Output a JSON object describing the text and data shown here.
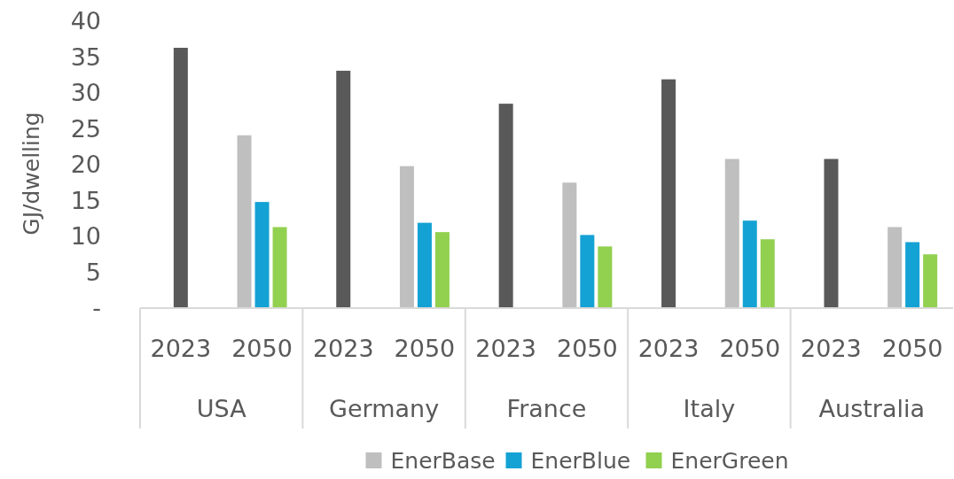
{
  "chart_data": {
    "type": "bar",
    "ylabel": "GJ/dwelling",
    "categories": [
      "2023",
      "2050",
      "2023",
      "2050",
      "2023",
      "2050",
      "2023",
      "2050",
      "2023",
      "2050"
    ],
    "annotations": [
      "USA",
      "Germany",
      "France",
      "Italy",
      "Australia"
    ],
    "series": [
      {
        "color": "#595959",
        "values": [
          36.3,
          null,
          33.1,
          null,
          28.5,
          null,
          31.9,
          null,
          20.8,
          null
        ]
      },
      {
        "name": "EnerBase",
        "color": "#bfbfbf",
        "values": [
          null,
          24.1,
          null,
          19.8,
          null,
          17.5,
          null,
          20.8,
          null,
          11.3
        ]
      },
      {
        "name": "EnerBlue",
        "color": "#14a2d4",
        "values": [
          null,
          14.8,
          null,
          11.9,
          null,
          10.2,
          null,
          12.2,
          null,
          9.2
        ]
      },
      {
        "name": "EnerGreen",
        "color": "#92d050",
        "values": [
          null,
          11.3,
          null,
          10.6,
          null,
          8.6,
          null,
          9.6,
          null,
          7.5
        ]
      }
    ],
    "ylim": [
      0,
      40
    ],
    "yticks": [
      {
        "value": 0,
        "label": "-"
      },
      5,
      10,
      15,
      20,
      25,
      30,
      35,
      40
    ],
    "grid": false,
    "legend": "bottom"
  }
}
